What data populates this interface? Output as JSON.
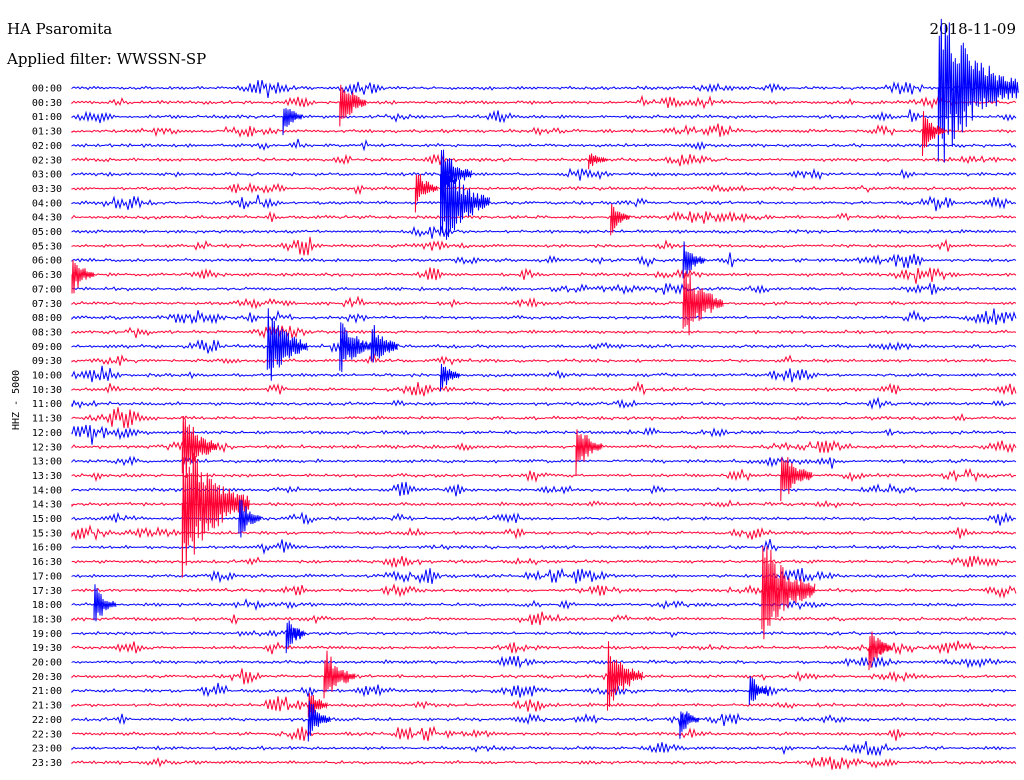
{
  "header": {
    "station": "HA Psaromita",
    "filter": "Applied filter: WWSSN-SP",
    "date": "2018-11-09",
    "channel_label": "HHZ - 5000"
  },
  "chart_data": {
    "type": "line",
    "title": "HA Psaromita",
    "subtitle": "Applied filter: WWSSN-SP",
    "ylabel": "HHZ - 5000",
    "trace_colors": [
      "#0000ff",
      "#ff0033"
    ],
    "row_labels": [
      "00:00",
      "00:30",
      "01:00",
      "01:30",
      "02:00",
      "02:30",
      "03:00",
      "03:30",
      "04:00",
      "04:30",
      "05:00",
      "05:30",
      "06:00",
      "06:30",
      "07:00",
      "07:30",
      "08:00",
      "08:30",
      "09:00",
      "09:30",
      "10:00",
      "10:30",
      "11:00",
      "11:30",
      "12:00",
      "12:30",
      "13:00",
      "13:30",
      "14:00",
      "14:30",
      "15:00",
      "15:30",
      "16:00",
      "16:30",
      "17:00",
      "17:30",
      "18:00",
      "18:30",
      "19:00",
      "19:30",
      "20:00",
      "20:30",
      "21:00",
      "21:30",
      "22:00",
      "22:30",
      "23:00",
      "23:30"
    ],
    "minutes_per_row": 30,
    "events": [
      {
        "row": 0,
        "minute": 27.5,
        "amplitude": 90
      },
      {
        "row": 1,
        "minute": 8.5,
        "amplitude": 30
      },
      {
        "row": 2,
        "minute": 6.7,
        "amplitude": 20
      },
      {
        "row": 3,
        "minute": 27.0,
        "amplitude": 25
      },
      {
        "row": 5,
        "minute": 16.4,
        "amplitude": 10
      },
      {
        "row": 6,
        "minute": 11.7,
        "amplitude": 35
      },
      {
        "row": 7,
        "minute": 10.9,
        "amplitude": 25
      },
      {
        "row": 8,
        "minute": 11.7,
        "amplitude": 55
      },
      {
        "row": 9,
        "minute": 17.1,
        "amplitude": 20
      },
      {
        "row": 12,
        "minute": 19.4,
        "amplitude": 25
      },
      {
        "row": 13,
        "minute": 0.0,
        "amplitude": 25
      },
      {
        "row": 15,
        "minute": 19.4,
        "amplitude": 45
      },
      {
        "row": 18,
        "minute": 6.2,
        "amplitude": 45
      },
      {
        "row": 18,
        "minute": 8.5,
        "amplitude": 35
      },
      {
        "row": 18,
        "minute": 9.5,
        "amplitude": 30
      },
      {
        "row": 20,
        "minute": 11.7,
        "amplitude": 20
      },
      {
        "row": 25,
        "minute": 3.5,
        "amplitude": 40
      },
      {
        "row": 25,
        "minute": 16.0,
        "amplitude": 30
      },
      {
        "row": 27,
        "minute": 22.5,
        "amplitude": 35
      },
      {
        "row": 29,
        "minute": 3.5,
        "amplitude": 75
      },
      {
        "row": 30,
        "minute": 5.3,
        "amplitude": 25
      },
      {
        "row": 35,
        "minute": 21.9,
        "amplitude": 60
      },
      {
        "row": 36,
        "minute": 0.7,
        "amplitude": 25
      },
      {
        "row": 38,
        "minute": 6.8,
        "amplitude": 20
      },
      {
        "row": 39,
        "minute": 25.3,
        "amplitude": 25
      },
      {
        "row": 41,
        "minute": 17.0,
        "amplitude": 40
      },
      {
        "row": 41,
        "minute": 8.0,
        "amplitude": 35
      },
      {
        "row": 42,
        "minute": 21.5,
        "amplitude": 20
      },
      {
        "row": 43,
        "minute": 7.5,
        "amplitude": 20
      },
      {
        "row": 44,
        "minute": 7.5,
        "amplitude": 25
      },
      {
        "row": 44,
        "minute": 19.3,
        "amplitude": 20
      }
    ]
  }
}
